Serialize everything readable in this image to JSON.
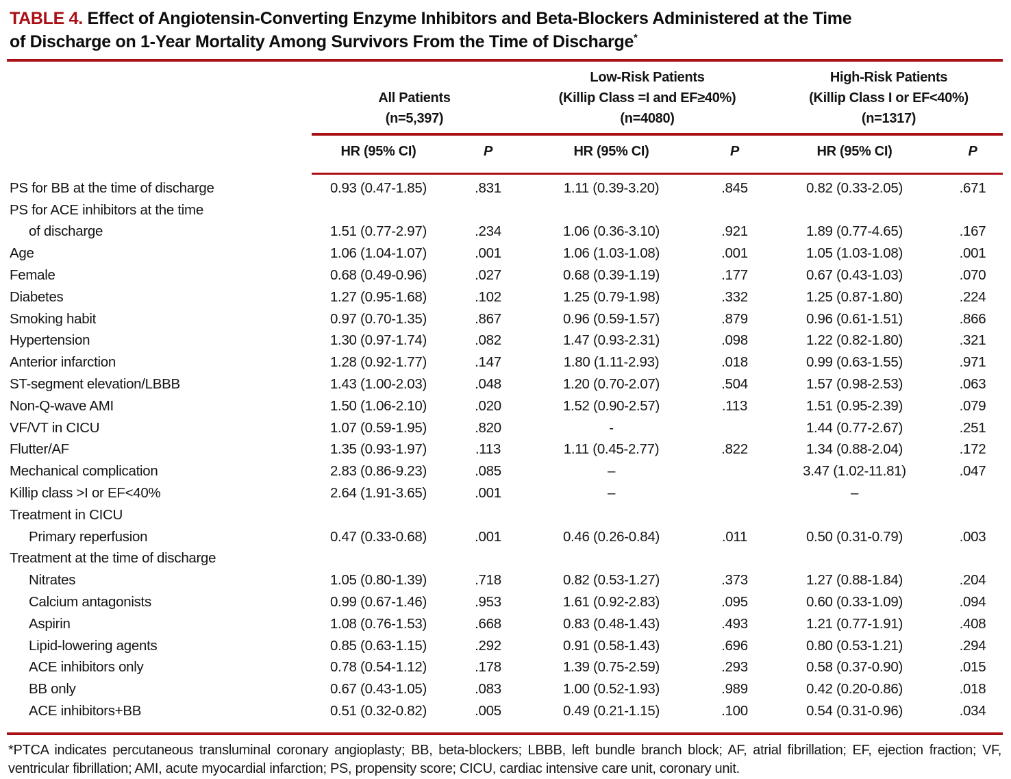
{
  "colors": {
    "accent_red": "#a90f14"
  },
  "title": {
    "label": "TABLE 4.",
    "line1": "Effect of Angiotensin-Converting Enzyme Inhibitors and Beta-Blockers Administered at the Time",
    "line2": "of Discharge on 1-Year Mortality Among Survivors From the Time of Discharge",
    "footnote_marker": "*"
  },
  "header": {
    "groups": [
      {
        "lines": [
          "",
          "All Patients",
          "(n=5,397)"
        ]
      },
      {
        "lines": [
          "Low-Risk Patients",
          "(Killip Class =I and EF≥40%)",
          "(n=4080)"
        ]
      },
      {
        "lines": [
          "High-Risk Patients",
          "(Killip Class I or EF<40%)",
          "(n=1317)"
        ]
      }
    ],
    "sub": [
      "HR (95% CI)",
      "P",
      "HR (95% CI)",
      "P",
      "HR (95% CI)",
      "P"
    ]
  },
  "table": {
    "rows": [
      {
        "label": "PS for BB at the time of discharge",
        "indent": 0,
        "cells": [
          "0.93 (0.47-1.85)",
          ".831",
          "1.11 (0.39-3.20)",
          ".845",
          "0.82 (0.33-2.05)",
          ".671"
        ]
      },
      {
        "label": "PS for ACE inhibitors at the time",
        "indent": 0,
        "cells": [
          "",
          "",
          "",
          "",
          "",
          ""
        ]
      },
      {
        "label": "of discharge",
        "indent": 1,
        "cells": [
          "1.51 (0.77-2.97)",
          ".234",
          "1.06 (0.36-3.10)",
          ".921",
          "1.89 (0.77-4.65)",
          ".167"
        ]
      },
      {
        "label": "Age",
        "indent": 0,
        "cells": [
          "1.06 (1.04-1.07)",
          ".001",
          "1.06 (1.03-1.08)",
          ".001",
          "1.05 (1.03-1.08)",
          ".001"
        ]
      },
      {
        "label": "Female",
        "indent": 0,
        "cells": [
          "0.68 (0.49-0.96)",
          ".027",
          "0.68 (0.39-1.19)",
          ".177",
          "0.67 (0.43-1.03)",
          ".070"
        ]
      },
      {
        "label": "Diabetes",
        "indent": 0,
        "cells": [
          "1.27 (0.95-1.68)",
          ".102",
          "1.25 (0.79-1.98)",
          ".332",
          "1.25 (0.87-1.80)",
          ".224"
        ]
      },
      {
        "label": "Smoking habit",
        "indent": 0,
        "cells": [
          "0.97 (0.70-1.35)",
          ".867",
          "0.96 (0.59-1.57)",
          ".879",
          "0.96 (0.61-1.51)",
          ".866"
        ]
      },
      {
        "label": "Hypertension",
        "indent": 0,
        "cells": [
          "1.30 (0.97-1.74)",
          ".082",
          "1.47 (0.93-2.31)",
          ".098",
          "1.22 (0.82-1.80)",
          ".321"
        ]
      },
      {
        "label": "Anterior infarction",
        "indent": 0,
        "cells": [
          "1.28 (0.92-1.77)",
          ".147",
          "1.80 (1.11-2.93)",
          ".018",
          "0.99 (0.63-1.55)",
          ".971"
        ]
      },
      {
        "label": "ST-segment elevation/LBBB",
        "indent": 0,
        "cells": [
          "1.43 (1.00-2.03)",
          ".048",
          "1.20 (0.70-2.07)",
          ".504",
          "1.57 (0.98-2.53)",
          ".063"
        ]
      },
      {
        "label": "Non-Q-wave AMI",
        "indent": 0,
        "cells": [
          "1.50 (1.06-2.10)",
          ".020",
          "1.52 (0.90-2.57)",
          ".113",
          "1.51 (0.95-2.39)",
          ".079"
        ]
      },
      {
        "label": "VF/VT in CICU",
        "indent": 0,
        "cells": [
          "1.07 (0.59-1.95)",
          ".820",
          "-",
          "",
          "1.44 (0.77-2.67)",
          ".251"
        ]
      },
      {
        "label": "Flutter/AF",
        "indent": 0,
        "cells": [
          "1.35 (0.93-1.97)",
          ".113",
          "1.11 (0.45-2.77)",
          ".822",
          "1.34 (0.88-2.04)",
          ".172"
        ]
      },
      {
        "label": "Mechanical complication",
        "indent": 0,
        "cells": [
          "2.83 (0.86-9.23)",
          ".085",
          "–",
          "",
          "3.47 (1.02-11.81)",
          ".047"
        ]
      },
      {
        "label": "Killip class >I or EF<40%",
        "indent": 0,
        "cells": [
          "2.64 (1.91-3.65)",
          ".001",
          "–",
          "",
          "–",
          ""
        ]
      },
      {
        "label": "Treatment in CICU",
        "indent": 0,
        "cells": [
          "",
          "",
          "",
          "",
          "",
          ""
        ]
      },
      {
        "label": "Primary reperfusion",
        "indent": 1,
        "cells": [
          "0.47 (0.33-0.68)",
          ".001",
          "0.46 (0.26-0.84)",
          ".011",
          "0.50 (0.31-0.79)",
          ".003"
        ]
      },
      {
        "label": "Treatment at the time of discharge",
        "indent": 0,
        "cells": [
          "",
          "",
          "",
          "",
          "",
          ""
        ]
      },
      {
        "label": "Nitrates",
        "indent": 1,
        "cells": [
          "1.05 (0.80-1.39)",
          ".718",
          "0.82 (0.53-1.27)",
          ".373",
          "1.27 (0.88-1.84)",
          ".204"
        ]
      },
      {
        "label": "Calcium antagonists",
        "indent": 1,
        "cells": [
          "0.99 (0.67-1.46)",
          ".953",
          "1.61 (0.92-2.83)",
          ".095",
          "0.60 (0.33-1.09)",
          ".094"
        ]
      },
      {
        "label": "Aspirin",
        "indent": 1,
        "cells": [
          "1.08 (0.76-1.53)",
          ".668",
          "0.83 (0.48-1.43)",
          ".493",
          "1.21 (0.77-1.91)",
          ".408"
        ]
      },
      {
        "label": "Lipid-lowering agents",
        "indent": 1,
        "cells": [
          "0.85 (0.63-1.15)",
          ".292",
          "0.91 (0.58-1.43)",
          ".696",
          "0.80 (0.53-1.21)",
          ".294"
        ]
      },
      {
        "label": "ACE inhibitors only",
        "indent": 1,
        "cells": [
          "0.78 (0.54-1.12)",
          ".178",
          "1.39 (0.75-2.59)",
          ".293",
          "0.58 (0.37-0.90)",
          ".015"
        ]
      },
      {
        "label": "BB only",
        "indent": 1,
        "cells": [
          "0.67 (0.43-1.05)",
          ".083",
          "1.00 (0.52-1.93)",
          ".989",
          "0.42 (0.20-0.86)",
          ".018"
        ]
      },
      {
        "label": "ACE inhibitors+BB",
        "indent": 1,
        "cells": [
          "0.51 (0.32-0.82)",
          ".005",
          "0.49 (0.21-1.15)",
          ".100",
          "0.54 (0.31-0.96)",
          ".034"
        ]
      }
    ]
  },
  "footnote": "*PTCA indicates percutaneous transluminal coronary angioplasty; BB, beta-blockers; LBBB, left bundle branch block; AF, atrial fibrillation; EF, ejection fraction; VF, ventricular fibrillation; AMI, acute myocardial infarction; PS, propensity score; CICU, cardiac intensive care unit, coronary unit."
}
